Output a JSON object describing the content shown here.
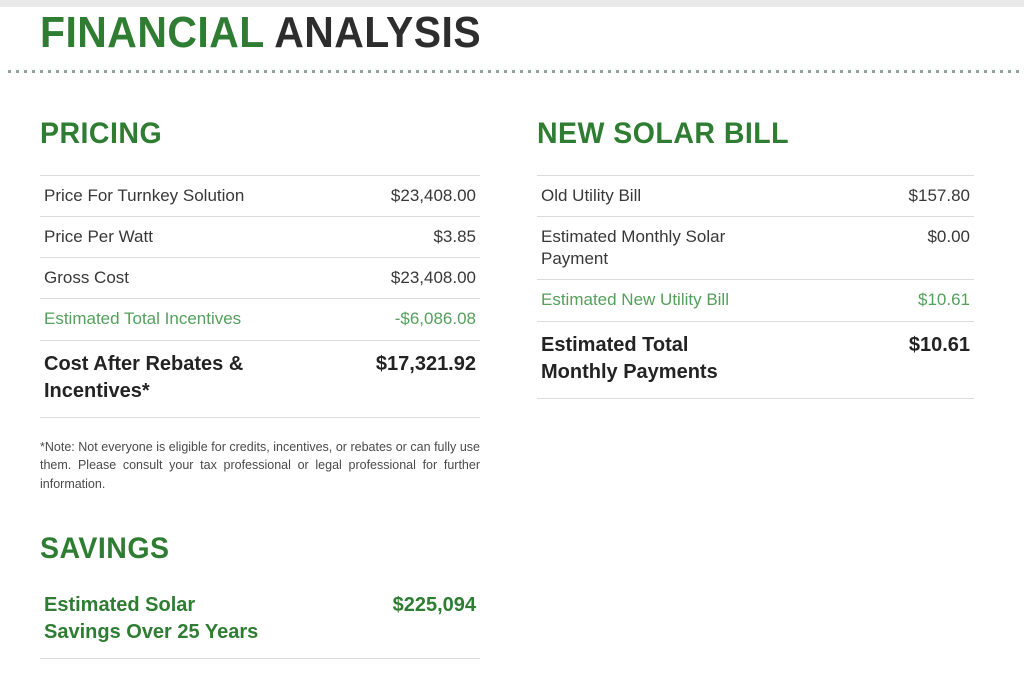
{
  "page": {
    "title_primary": "FINANCIAL",
    "title_secondary": " ANALYSIS"
  },
  "colors": {
    "accent_green": "#2e7d32",
    "light_green": "#54a05c",
    "heading_dark": "#2d2d2d",
    "body_text": "#383838",
    "divider_dot": "#93a297",
    "row_border": "#dcdcdc"
  },
  "pricing": {
    "heading": "PRICING",
    "rows": [
      {
        "label": "Price For Turnkey Solution",
        "value": "$23,408.00"
      },
      {
        "label": "Price Per Watt",
        "value": "$3.85"
      },
      {
        "label": "Gross Cost",
        "value": "$23,408.00"
      },
      {
        "label": "Estimated Total Incentives",
        "value": "-$6,086.08"
      },
      {
        "label": "Cost After Rebates & Incentives*",
        "value": "$17,321.92"
      }
    ],
    "note": "*Note: Not everyone is eligible for credits, incentives, or rebates or can fully use them. Please consult your tax professional or legal professional for further information."
  },
  "savings": {
    "heading": "SAVINGS",
    "rows": [
      {
        "label": "Estimated Solar Savings Over 25 Years",
        "value": "$225,094"
      }
    ]
  },
  "new_solar_bill": {
    "heading": "NEW SOLAR BILL",
    "rows": [
      {
        "label": "Old Utility Bill",
        "value": "$157.80"
      },
      {
        "label": "Estimated Monthly Solar Payment",
        "value": "$0.00"
      },
      {
        "label": "Estimated New Utility Bill",
        "value": "$10.61"
      },
      {
        "label": "Estimated Total Monthly Payments",
        "value": "$10.61"
      }
    ]
  }
}
